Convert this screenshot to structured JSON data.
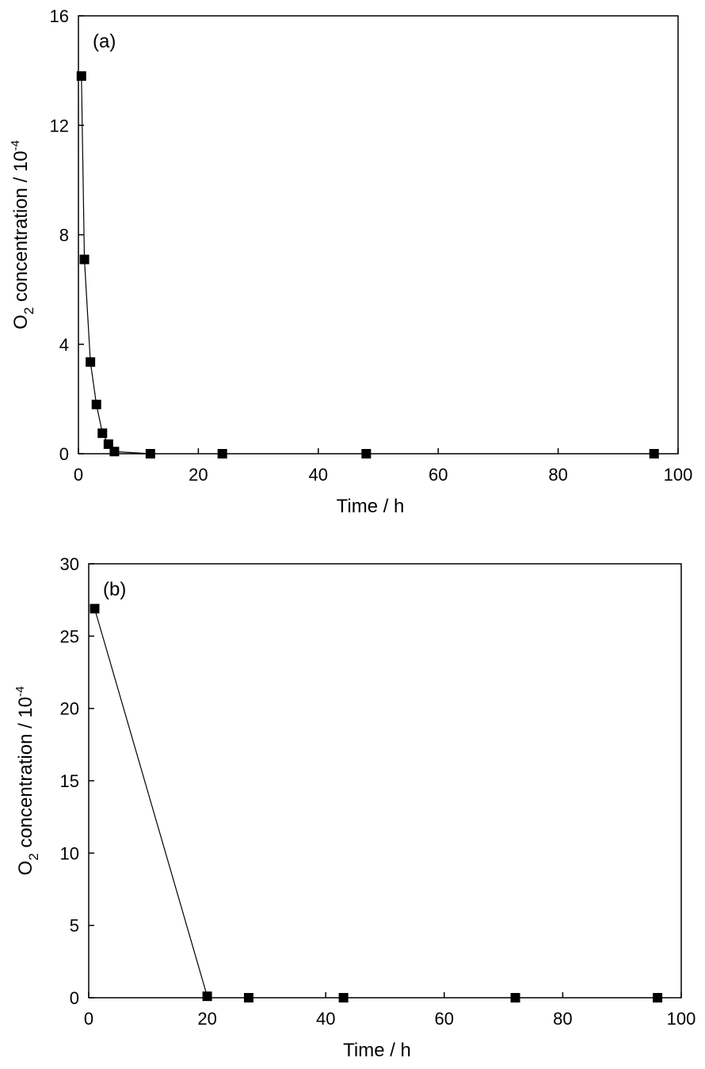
{
  "chart_data": [
    {
      "type": "line",
      "panel_label": "(a)",
      "xlabel": "Time / h",
      "ylabel": {
        "prefix": "O",
        "subscript": "2",
        "middle": " concentration / 10",
        "superscript": "-4"
      },
      "xlim": [
        0,
        100
      ],
      "ylim": [
        0,
        16
      ],
      "xticks": [
        0,
        20,
        40,
        60,
        80,
        100
      ],
      "yticks": [
        0,
        4,
        8,
        12,
        16
      ],
      "grid": false,
      "marker": "square",
      "line_points": 8,
      "series": [
        {
          "x": [
            0.5,
            1,
            2,
            3,
            4,
            5,
            6,
            12,
            24,
            48,
            96
          ],
          "y": [
            13.8,
            7.1,
            3.35,
            1.8,
            0.75,
            0.35,
            0.08,
            0.0,
            0.0,
            0.0,
            0.0
          ]
        }
      ]
    },
    {
      "type": "line",
      "panel_label": "(b)",
      "xlabel": "Time / h",
      "ylabel": {
        "prefix": "O",
        "subscript": "2",
        "middle": " concentration / 10",
        "superscript": "-4"
      },
      "xlim": [
        0,
        100
      ],
      "ylim": [
        0,
        30
      ],
      "xticks": [
        0,
        20,
        40,
        60,
        80,
        100
      ],
      "yticks": [
        0,
        5,
        10,
        15,
        20,
        25,
        30
      ],
      "grid": false,
      "marker": "square",
      "line_points": 2,
      "series": [
        {
          "x": [
            1,
            20,
            27,
            43,
            72,
            96
          ],
          "y": [
            26.9,
            0.1,
            0.0,
            0.0,
            0.0,
            0.0
          ]
        }
      ]
    }
  ]
}
